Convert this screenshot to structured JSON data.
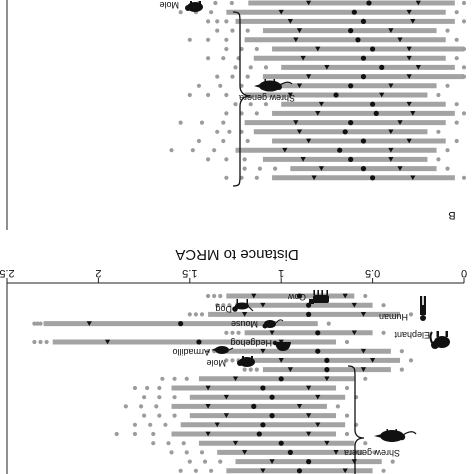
{
  "colors": {
    "bar": "#a3a3a3",
    "dot": "#9c9c9c",
    "marker": "#111111",
    "axis": "#222222"
  },
  "chart_data": [
    {
      "panel": "A",
      "type": "scatter",
      "orientation": "rotated-180",
      "xlim": [
        0,
        2.5
      ],
      "groups": [
        {
          "label": "Shrew genera",
          "icon": "shrew-icon"
        }
      ],
      "species": [
        {
          "label": "Mole",
          "icon": "mole-icon"
        }
      ],
      "rows": [
        {
          "label": "",
          "lo": 0.05,
          "hi": 1.18,
          "mean": 0.52,
          "q1": 0.25,
          "q3": 0.85,
          "extent": 1.45
        },
        {
          "label": "Mole",
          "lo": 0.1,
          "hi": 1.3,
          "mean": 0.6,
          "q1": 0.3,
          "q3": 1.0,
          "extent": 1.55
        },
        {
          "label": "",
          "lo": 0.05,
          "hi": 1.25,
          "mean": 0.55,
          "q1": 0.28,
          "q3": 0.95,
          "extent": 1.4
        },
        {
          "label": "",
          "lo": 0.15,
          "hi": 1.1,
          "mean": 0.62,
          "q1": 0.4,
          "q3": 0.9,
          "extent": 1.35
        },
        {
          "label": "",
          "lo": 0.1,
          "hi": 1.2,
          "mean": 0.58,
          "q1": 0.35,
          "q3": 0.92,
          "extent": 1.5
        },
        {
          "label": "",
          "lo": 0.0,
          "hi": 1.05,
          "mean": 0.5,
          "q1": 0.3,
          "q3": 0.8,
          "extent": 1.3
        },
        {
          "label": "",
          "lo": 0.1,
          "hi": 1.15,
          "mean": 0.55,
          "q1": 0.3,
          "q3": 0.88,
          "extent": 1.4
        },
        {
          "label": "",
          "lo": 0.05,
          "hi": 1.0,
          "mean": 0.45,
          "q1": 0.25,
          "q3": 0.75,
          "extent": 1.25
        },
        {
          "label": "",
          "lo": 0.0,
          "hi": 1.1,
          "mean": 0.55,
          "q1": 0.3,
          "q3": 0.85,
          "extent": 1.35
        },
        {
          "label": "",
          "lo": 0.15,
          "hi": 1.1,
          "mean": 0.62,
          "q1": 0.4,
          "q3": 0.9,
          "extent": 1.45
        },
        {
          "label": "",
          "lo": 0.2,
          "hi": 1.2,
          "mean": 0.7,
          "q1": 0.45,
          "q3": 0.95,
          "extent": 1.5
        },
        {
          "label": "",
          "lo": 0.1,
          "hi": 1.0,
          "mean": 0.5,
          "q1": 0.3,
          "q3": 0.78,
          "extent": 1.25
        },
        {
          "label": "",
          "lo": 0.05,
          "hi": 1.05,
          "mean": 0.48,
          "q1": 0.28,
          "q3": 0.8,
          "extent": 1.3
        },
        {
          "label": "",
          "lo": 0.1,
          "hi": 1.2,
          "mean": 0.62,
          "q1": 0.35,
          "q3": 0.92,
          "extent": 1.55
        },
        {
          "label": "",
          "lo": 0.2,
          "hi": 1.15,
          "mean": 0.65,
          "q1": 0.4,
          "q3": 0.9,
          "extent": 1.35
        },
        {
          "label": "",
          "lo": 0.1,
          "hi": 1.05,
          "mean": 0.55,
          "q1": 0.3,
          "q3": 0.85,
          "extent": 1.45
        },
        {
          "label": "",
          "lo": 0.15,
          "hi": 1.25,
          "mean": 0.68,
          "q1": 0.4,
          "q3": 0.98,
          "extent": 1.6
        },
        {
          "label": "",
          "lo": 0.2,
          "hi": 1.1,
          "mean": 0.62,
          "q1": 0.4,
          "q3": 0.88,
          "extent": 1.4
        },
        {
          "label": "",
          "lo": 0.15,
          "hi": 0.95,
          "mean": 0.55,
          "q1": 0.35,
          "q3": 0.78,
          "extent": 1.2
        },
        {
          "label": "",
          "lo": 0.05,
          "hi": 1.05,
          "mean": 0.5,
          "q1": 0.28,
          "q3": 0.82,
          "extent": 1.3
        }
      ]
    },
    {
      "panel": "B",
      "type": "scatter",
      "orientation": "rotated-180",
      "panel_letter": "B",
      "xlabel": "Distance to MRCA",
      "xlim": [
        0,
        2.5
      ],
      "xticks": [
        "0",
        "0.5",
        "1",
        "1.5",
        "2",
        "2.5"
      ],
      "groups": [
        {
          "label": "Shrew genera",
          "icon": "shrew-icon"
        }
      ],
      "species": [
        {
          "label": "Cow",
          "icon": "cow-icon"
        },
        {
          "label": "Dog",
          "icon": "dog-icon"
        },
        {
          "label": "Human",
          "icon": "human-icon"
        },
        {
          "label": "Mouse",
          "icon": "mouse-icon"
        },
        {
          "label": "Elephant",
          "icon": "elephant-icon"
        },
        {
          "label": "Hedgehog",
          "icon": "hedgehog-icon"
        },
        {
          "label": "Armadillo",
          "icon": "armadillo-icon"
        },
        {
          "label": "Mole",
          "icon": "mole-icon"
        }
      ],
      "rows": [
        {
          "label": "Cow",
          "lo": 0.6,
          "hi": 1.3,
          "mean": 0.9,
          "q1": 0.65,
          "q3": 1.15,
          "extent": 1.4
        },
        {
          "label": "Dog",
          "lo": 0.5,
          "hi": 1.25,
          "mean": 0.85,
          "q1": 0.6,
          "q3": 1.1,
          "extent": 1.35
        },
        {
          "label": "",
          "lo": 0.35,
          "hi": 1.4,
          "mean": 0.85,
          "q1": 0.55,
          "q3": 1.2,
          "extent": 1.5
        },
        {
          "label": "Human",
          "lo": 0.8,
          "hi": 2.3,
          "mean": 1.55,
          "q1": 1.05,
          "q3": 2.05,
          "extent": 2.35
        },
        {
          "label": "Mouse",
          "lo": 0.5,
          "hi": 1.2,
          "mean": 0.8,
          "q1": 0.6,
          "q3": 1.05,
          "extent": 1.3
        },
        {
          "label": "Elephant",
          "lo": 0.7,
          "hi": 2.25,
          "mean": 1.45,
          "q1": 1.0,
          "q3": 1.95,
          "extent": 2.35
        },
        {
          "label": "Hedgehog",
          "lo": 0.4,
          "hi": 1.3,
          "mean": 0.8,
          "q1": 0.55,
          "q3": 1.1,
          "extent": 1.4
        },
        {
          "label": "Armadillo",
          "lo": 0.35,
          "hi": 1.2,
          "mean": 0.75,
          "q1": 0.5,
          "q3": 1.0,
          "extent": 1.3
        },
        {
          "label": "Mole",
          "lo": 0.4,
          "hi": 1.1,
          "mean": 0.75,
          "q1": 0.55,
          "q3": 0.95,
          "extent": 1.2
        },
        {
          "label": "",
          "lo": 0.6,
          "hi": 1.45,
          "mean": 1.0,
          "q1": 0.75,
          "q3": 1.25,
          "extent": 1.65
        },
        {
          "label": "",
          "lo": 0.7,
          "hi": 1.6,
          "mean": 1.1,
          "q1": 0.85,
          "q3": 1.4,
          "extent": 1.8
        },
        {
          "label": "",
          "lo": 0.65,
          "hi": 1.5,
          "mean": 1.05,
          "q1": 0.8,
          "q3": 1.3,
          "extent": 1.75
        },
        {
          "label": "",
          "lo": 0.75,
          "hi": 1.6,
          "mean": 1.15,
          "q1": 0.9,
          "q3": 1.4,
          "extent": 1.85
        },
        {
          "label": "",
          "lo": 0.7,
          "hi": 1.5,
          "mean": 1.05,
          "q1": 0.85,
          "q3": 1.3,
          "extent": 1.75
        },
        {
          "label": "",
          "lo": 0.65,
          "hi": 1.55,
          "mean": 1.1,
          "q1": 0.8,
          "q3": 1.35,
          "extent": 1.8
        },
        {
          "label": "",
          "lo": 0.7,
          "hi": 1.6,
          "mean": 1.12,
          "q1": 0.85,
          "q3": 1.4,
          "extent": 1.9
        },
        {
          "label": "",
          "lo": 0.6,
          "hi": 1.45,
          "mean": 1.0,
          "q1": 0.75,
          "q3": 1.25,
          "extent": 1.7
        },
        {
          "label": "",
          "lo": 0.55,
          "hi": 1.35,
          "mean": 0.95,
          "q1": 0.7,
          "q3": 1.2,
          "extent": 1.6
        },
        {
          "label": "",
          "lo": 0.45,
          "hi": 1.25,
          "mean": 0.85,
          "q1": 0.6,
          "q3": 1.05,
          "extent": 1.5
        },
        {
          "label": "",
          "lo": 0.5,
          "hi": 1.3,
          "mean": 0.9,
          "q1": 0.65,
          "q3": 1.1,
          "extent": 1.55
        }
      ]
    }
  ]
}
